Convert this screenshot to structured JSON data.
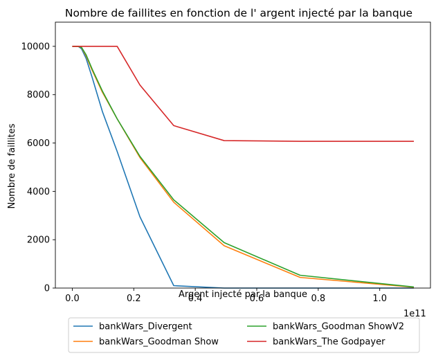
{
  "chart_data": {
    "type": "line",
    "title": "Nombre de faillites en fonction de l' argent injecté par la banque",
    "xlabel": "Argent injecté par la banque",
    "ylabel": "Nombre de faillites",
    "x_offset_label": "1e11",
    "xlim": [
      -0.055,
      1.165
    ],
    "ylim": [
      0,
      11000
    ],
    "x_ticks": [
      0.0,
      0.2,
      0.4,
      0.6,
      0.8,
      1.0
    ],
    "x_tick_labels": [
      "0.0",
      "0.2",
      "0.4",
      "0.6",
      "0.8",
      "1.0"
    ],
    "y_ticks": [
      0,
      2000,
      4000,
      6000,
      8000,
      10000
    ],
    "y_tick_labels": [
      "0",
      "2000",
      "4000",
      "6000",
      "8000",
      "10000"
    ],
    "x": [
      0.0,
      0.01,
      0.02,
      0.03,
      0.045,
      0.065,
      0.098,
      0.146,
      0.22,
      0.33,
      0.494,
      0.741,
      1.111
    ],
    "series": [
      {
        "name": "bankWars_Divergent",
        "color": "#1f77b4",
        "values": [
          10000,
          10000,
          9990,
          9900,
          9500,
          8700,
          7300,
          5650,
          2950,
          100,
          0,
          0,
          0
        ]
      },
      {
        "name": "bankWars_Goodman Show",
        "color": "#ff7f0e",
        "values": [
          10000,
          10000,
          9995,
          9950,
          9600,
          9000,
          8100,
          7000,
          5400,
          3550,
          1750,
          440,
          35
        ]
      },
      {
        "name": "bankWars_Goodman ShowV2",
        "color": "#2ca02c",
        "values": [
          10000,
          10000,
          9995,
          9960,
          9650,
          9050,
          8150,
          7000,
          5450,
          3650,
          1880,
          530,
          45
        ]
      },
      {
        "name": "bankWars_The Godpayer",
        "color": "#d62728",
        "values": [
          10000,
          10000,
          10000,
          10000,
          10000,
          10000,
          10000,
          10000,
          8400,
          6720,
          6100,
          6070,
          6070
        ]
      }
    ],
    "legend_location": "below plot, two columns"
  }
}
